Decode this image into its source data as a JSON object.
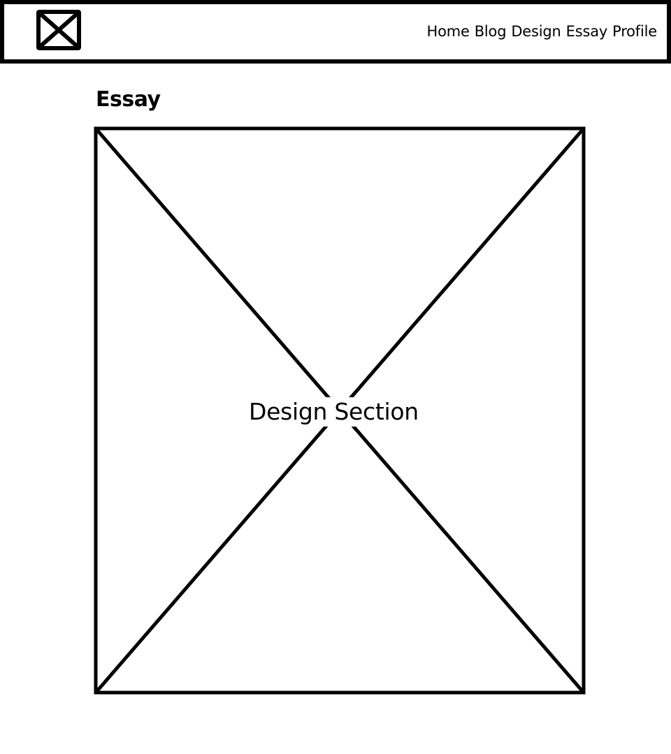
{
  "header": {
    "logo_icon": "image-placeholder-icon",
    "nav": [
      {
        "label": "Home"
      },
      {
        "label": "Blog"
      },
      {
        "label": "Design"
      },
      {
        "label": "Essay"
      },
      {
        "label": "Profile"
      }
    ]
  },
  "main": {
    "title": "Essay",
    "placeholder": {
      "icon": "image-placeholder-icon",
      "label": "Design Section"
    }
  }
}
